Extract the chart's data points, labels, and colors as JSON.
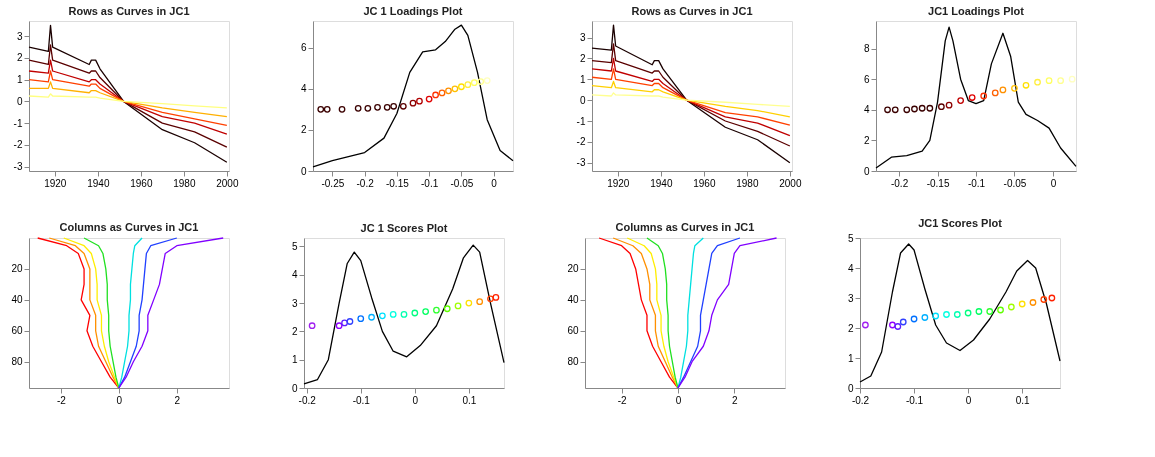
{
  "chart_data": [
    {
      "type": "line",
      "title": "Rows as Curves in JC1",
      "xlim": [
        1908,
        2001
      ],
      "xticks": [
        1920,
        1940,
        1960,
        1980,
        2000
      ],
      "ylim": [
        -3.2,
        3.7
      ],
      "yticks": [
        -3,
        -2,
        -1,
        0,
        1,
        2,
        3
      ],
      "x": [
        1908,
        1917,
        1918,
        1919,
        1936,
        1937,
        1939,
        1941,
        1952,
        1970,
        1985,
        2000
      ],
      "series": [
        {
          "color": "#1a0000",
          "values": [
            2.5,
            2.3,
            3.5,
            2.5,
            1.7,
            1.9,
            1.9,
            1.5,
            0,
            -1.3,
            -1.9,
            -2.8
          ]
        },
        {
          "color": "#5a0000",
          "values": [
            1.9,
            1.7,
            2.6,
            1.9,
            1.3,
            1.4,
            1.4,
            1.1,
            0,
            -1.0,
            -1.4,
            -2.1
          ]
        },
        {
          "color": "#c00000",
          "values": [
            1.4,
            1.3,
            1.9,
            1.4,
            0.9,
            1.0,
            1.0,
            0.8,
            0,
            -0.7,
            -1.0,
            -1.5
          ]
        },
        {
          "color": "#ff4000",
          "values": [
            1.0,
            0.9,
            1.4,
            1.0,
            0.7,
            0.8,
            0.8,
            0.6,
            0,
            -0.5,
            -0.8,
            -1.1
          ]
        },
        {
          "color": "#ffb000",
          "values": [
            0.6,
            0.6,
            0.9,
            0.6,
            0.4,
            0.5,
            0.5,
            0.4,
            0,
            -0.3,
            -0.5,
            -0.7
          ]
        },
        {
          "color": "#ffff80",
          "values": [
            0.25,
            0.2,
            0.35,
            0.25,
            0.2,
            0.2,
            0.2,
            0.15,
            0,
            -0.1,
            -0.2,
            -0.3
          ]
        }
      ]
    },
    {
      "type": "line",
      "title": "JC 1 Loadings Plot",
      "xlim": [
        -0.28,
        0.03
      ],
      "xticks": [
        -0.25,
        -0.2,
        -0.15,
        -0.1,
        -0.05,
        0
      ],
      "ylim": [
        0,
        7.3
      ],
      "yticks": [
        0,
        2,
        4,
        6
      ],
      "series": [
        {
          "color": "#000000",
          "x": [
            -0.28,
            -0.25,
            -0.2,
            -0.17,
            -0.15,
            -0.13,
            -0.11,
            -0.09,
            -0.075,
            -0.06,
            -0.05,
            -0.04,
            -0.025,
            -0.01,
            0.01,
            0.03
          ],
          "values": [
            0.2,
            0.5,
            0.9,
            1.6,
            2.8,
            4.8,
            5.8,
            5.9,
            6.3,
            6.9,
            7.1,
            6.6,
            4.8,
            2.5,
            1.0,
            0.5
          ]
        },
        {
          "type": "scatter",
          "marker": "circle",
          "x": [
            -0.268,
            -0.258,
            -0.235,
            -0.21,
            -0.195,
            -0.18,
            -0.165,
            -0.155,
            -0.14,
            -0.125,
            -0.115,
            -0.1,
            -0.09,
            -0.08,
            -0.07,
            -0.06,
            -0.05,
            -0.04,
            -0.03,
            -0.02,
            -0.01
          ],
          "values": [
            3.0,
            3.0,
            3.0,
            3.05,
            3.05,
            3.1,
            3.1,
            3.15,
            3.15,
            3.3,
            3.4,
            3.5,
            3.7,
            3.8,
            3.9,
            4.0,
            4.1,
            4.2,
            4.3,
            4.35,
            4.4
          ],
          "colors": [
            "#3a0000",
            "#3a0000",
            "#3a0000",
            "#3a0000",
            "#3a0000",
            "#3a0000",
            "#3a0000",
            "#3a0000",
            "#5a0000",
            "#8b0000",
            "#b00000",
            "#e00000",
            "#ff3000",
            "#ff6000",
            "#ff9000",
            "#ffc000",
            "#ffe000",
            "#ffee40",
            "#ffff60",
            "#ffff90",
            "#ffffc0"
          ]
        }
      ]
    },
    {
      "type": "line",
      "title": "Rows as Curves in JC1",
      "xlim": [
        1908,
        2001
      ],
      "xticks": [
        1920,
        1940,
        1960,
        1980,
        2000
      ],
      "ylim": [
        -3.4,
        3.8
      ],
      "yticks": [
        -3,
        -2,
        -1,
        0,
        1,
        2,
        3
      ],
      "x": [
        1908,
        1917,
        1918,
        1919,
        1936,
        1937,
        1939,
        1941,
        1952,
        1970,
        1985,
        2000
      ],
      "series": [
        {
          "color": "#1a0000",
          "values": [
            2.5,
            2.4,
            3.6,
            2.6,
            1.7,
            1.9,
            1.9,
            1.5,
            0,
            -1.3,
            -1.9,
            -3.0
          ]
        },
        {
          "color": "#5a0000",
          "values": [
            1.9,
            1.8,
            2.7,
            1.9,
            1.3,
            1.4,
            1.4,
            1.1,
            0,
            -1.0,
            -1.5,
            -2.2
          ]
        },
        {
          "color": "#c00000",
          "values": [
            1.5,
            1.4,
            2.0,
            1.4,
            0.9,
            1.0,
            1.0,
            0.8,
            0,
            -0.8,
            -1.1,
            -1.7
          ]
        },
        {
          "color": "#ff4000",
          "values": [
            1.1,
            1.0,
            1.5,
            1.0,
            0.7,
            0.8,
            0.8,
            0.6,
            0,
            -0.6,
            -0.8,
            -1.2
          ]
        },
        {
          "color": "#ffd000",
          "values": [
            0.7,
            0.6,
            0.9,
            0.6,
            0.4,
            0.5,
            0.5,
            0.4,
            0,
            -0.3,
            -0.5,
            -0.8
          ]
        },
        {
          "color": "#ffff90",
          "values": [
            0.25,
            0.2,
            0.35,
            0.25,
            0.2,
            0.2,
            0.2,
            0.15,
            0,
            -0.1,
            -0.2,
            -0.3
          ]
        }
      ]
    },
    {
      "type": "line",
      "title": "JC1 Loadings Plot",
      "xlim": [
        -0.23,
        0.03
      ],
      "xticks": [
        -0.2,
        -0.15,
        -0.1,
        -0.05,
        0
      ],
      "ylim": [
        0,
        9.8
      ],
      "yticks": [
        0,
        2,
        4,
        6,
        8
      ],
      "series": [
        {
          "color": "#000000",
          "x": [
            -0.23,
            -0.21,
            -0.19,
            -0.17,
            -0.16,
            -0.15,
            -0.14,
            -0.135,
            -0.13,
            -0.12,
            -0.11,
            -0.1,
            -0.09,
            -0.08,
            -0.065,
            -0.055,
            -0.045,
            -0.035,
            -0.02,
            -0.005,
            0.01,
            0.03
          ],
          "values": [
            0.2,
            0.9,
            1.0,
            1.3,
            2.0,
            4.5,
            8.5,
            9.4,
            8.5,
            6.0,
            4.6,
            4.4,
            4.6,
            7.0,
            9.0,
            7.5,
            4.5,
            3.7,
            3.3,
            2.8,
            1.5,
            0.3
          ]
        },
        {
          "type": "scatter",
          "marker": "circle",
          "x": [
            -0.215,
            -0.205,
            -0.19,
            -0.18,
            -0.17,
            -0.16,
            -0.145,
            -0.135,
            -0.12,
            -0.105,
            -0.09,
            -0.075,
            -0.065,
            -0.05,
            -0.035,
            -0.02,
            -0.005,
            0.01,
            0.025
          ],
          "values": [
            4.0,
            4.0,
            4.0,
            4.05,
            4.1,
            4.1,
            4.2,
            4.3,
            4.6,
            4.8,
            4.9,
            5.1,
            5.3,
            5.4,
            5.6,
            5.8,
            5.9,
            5.9,
            6.0
          ],
          "colors": [
            "#3a0000",
            "#3a0000",
            "#3a0000",
            "#3a0000",
            "#3a0000",
            "#3a0000",
            "#5a0000",
            "#8b0000",
            "#c00000",
            "#e00000",
            "#ff3000",
            "#ff6000",
            "#ff9000",
            "#ffc000",
            "#ffe000",
            "#ffee40",
            "#ffff60",
            "#ffff90",
            "#ffffc0"
          ]
        }
      ]
    },
    {
      "type": "line",
      "title": "Columns as Curves in JC1",
      "xlim": [
        -3.1,
        3.8
      ],
      "xticks": [
        -2,
        0,
        2
      ],
      "ylim": [
        97,
        0
      ],
      "yticks": [
        20,
        40,
        60,
        80
      ],
      "series": [
        {
          "color": "#ff0000",
          "x": [
            -2.8,
            -1.8,
            -1.4,
            -1.2,
            -1.2,
            -1.3,
            -1.0,
            -1.1,
            -0.9,
            -0.6,
            -0.3,
            0
          ],
          "values": [
            0,
            5,
            10,
            20,
            30,
            40,
            50,
            60,
            70,
            80,
            90,
            97
          ]
        },
        {
          "color": "#ff9000",
          "x": [
            -2.4,
            -1.5,
            -1.2,
            -1.0,
            -1.0,
            -1.0,
            -0.8,
            -0.8,
            -0.7,
            -0.45,
            -0.2,
            0
          ],
          "values": [
            0,
            5,
            10,
            20,
            30,
            40,
            50,
            60,
            70,
            80,
            90,
            97
          ]
        },
        {
          "color": "#ffee00",
          "x": [
            -1.9,
            -1.2,
            -0.95,
            -0.8,
            -0.75,
            -0.75,
            -0.6,
            -0.6,
            -0.5,
            -0.35,
            -0.15,
            0
          ],
          "values": [
            0,
            5,
            10,
            20,
            30,
            40,
            50,
            60,
            70,
            80,
            90,
            97
          ]
        },
        {
          "color": "#20e020",
          "x": [
            -1.2,
            -0.7,
            -0.55,
            -0.45,
            -0.4,
            -0.4,
            -0.35,
            -0.35,
            -0.3,
            -0.2,
            -0.1,
            0
          ],
          "values": [
            0,
            5,
            10,
            20,
            30,
            40,
            50,
            60,
            70,
            80,
            90,
            97
          ]
        },
        {
          "color": "#00e0e0",
          "x": [
            0.8,
            0.55,
            0.5,
            0.45,
            0.4,
            0.4,
            0.35,
            0.35,
            0.3,
            0.2,
            0.1,
            0
          ],
          "values": [
            0,
            5,
            10,
            20,
            30,
            40,
            50,
            60,
            70,
            80,
            90,
            97
          ]
        },
        {
          "color": "#2040ff",
          "x": [
            2.0,
            1.1,
            0.95,
            0.9,
            0.85,
            0.8,
            0.7,
            0.7,
            0.6,
            0.4,
            0.2,
            0
          ],
          "values": [
            0,
            5,
            10,
            20,
            30,
            40,
            50,
            60,
            70,
            80,
            90,
            97
          ]
        },
        {
          "color": "#8000ff",
          "x": [
            3.6,
            2.0,
            1.6,
            1.5,
            1.4,
            1.2,
            1.0,
            1.0,
            0.8,
            0.5,
            0.25,
            0
          ],
          "values": [
            0,
            5,
            10,
            20,
            30,
            40,
            50,
            60,
            70,
            80,
            90,
            97
          ]
        }
      ]
    },
    {
      "type": "line",
      "title": "JC 1 Scores Plot",
      "xlim": [
        -0.205,
        0.165
      ],
      "xticks": [
        -0.2,
        -0.1,
        0,
        0.1
      ],
      "ylim": [
        0,
        5.3
      ],
      "yticks": [
        0,
        1,
        2,
        3,
        4,
        5
      ],
      "series": [
        {
          "color": "#000000",
          "x": [
            -0.205,
            -0.18,
            -0.16,
            -0.14,
            -0.125,
            -0.112,
            -0.1,
            -0.08,
            -0.06,
            -0.04,
            -0.015,
            0.01,
            0.04,
            0.07,
            0.09,
            0.108,
            0.12,
            0.14,
            0.165
          ],
          "values": [
            0.15,
            0.3,
            1.0,
            3.0,
            4.4,
            4.8,
            4.5,
            3.2,
            2.0,
            1.3,
            1.1,
            1.5,
            2.2,
            3.5,
            4.6,
            5.05,
            4.8,
            3.0,
            0.9
          ]
        },
        {
          "type": "scatter",
          "marker": "circle",
          "x": [
            -0.19,
            -0.14,
            -0.13,
            -0.12,
            -0.1,
            -0.08,
            -0.06,
            -0.04,
            -0.02,
            0.0,
            0.02,
            0.04,
            0.06,
            0.08,
            0.1,
            0.12,
            0.14,
            0.15
          ],
          "values": [
            2.2,
            2.2,
            2.3,
            2.35,
            2.45,
            2.5,
            2.55,
            2.6,
            2.6,
            2.65,
            2.7,
            2.75,
            2.8,
            2.9,
            3.0,
            3.05,
            3.15,
            3.2
          ],
          "colors": [
            "#a020f0",
            "#9000ff",
            "#6020ff",
            "#3040ff",
            "#0070ff",
            "#00b0ff",
            "#00e0ff",
            "#00ffe0",
            "#00ffb0",
            "#00ff80",
            "#00ff60",
            "#30ff30",
            "#60ff00",
            "#a0ff00",
            "#ffe000",
            "#ff9000",
            "#ff4000",
            "#ff2000"
          ]
        }
      ]
    },
    {
      "type": "line",
      "title": "Columns as Curves in JC1",
      "xlim": [
        -3.3,
        3.8
      ],
      "xticks": [
        -2,
        0,
        2
      ],
      "ylim": [
        97,
        0
      ],
      "yticks": [
        20,
        40,
        60,
        80
      ],
      "series": [
        {
          "color": "#ff0000",
          "x": [
            -2.8,
            -2.0,
            -1.7,
            -1.5,
            -1.4,
            -1.3,
            -1.1,
            -1.1,
            -0.9,
            -0.6,
            -0.3,
            0
          ],
          "values": [
            0,
            5,
            10,
            20,
            30,
            40,
            50,
            60,
            70,
            80,
            90,
            97
          ]
        },
        {
          "color": "#ff9000",
          "x": [
            -2.3,
            -1.6,
            -1.3,
            -1.1,
            -1.0,
            -1.0,
            -0.8,
            -0.8,
            -0.7,
            -0.45,
            -0.2,
            0
          ],
          "values": [
            0,
            5,
            10,
            20,
            30,
            40,
            50,
            60,
            70,
            80,
            90,
            97
          ]
        },
        {
          "color": "#ffee00",
          "x": [
            -1.8,
            -1.2,
            -0.95,
            -0.8,
            -0.75,
            -0.75,
            -0.6,
            -0.6,
            -0.5,
            -0.35,
            -0.15,
            0
          ],
          "values": [
            0,
            5,
            10,
            20,
            30,
            40,
            50,
            60,
            70,
            80,
            90,
            97
          ]
        },
        {
          "color": "#20e020",
          "x": [
            -1.1,
            -0.7,
            -0.55,
            -0.45,
            -0.4,
            -0.4,
            -0.35,
            -0.35,
            -0.3,
            -0.2,
            -0.1,
            0
          ],
          "values": [
            0,
            5,
            10,
            20,
            30,
            40,
            50,
            60,
            70,
            80,
            90,
            97
          ]
        },
        {
          "color": "#00e0e0",
          "x": [
            0.9,
            0.6,
            0.55,
            0.5,
            0.45,
            0.4,
            0.35,
            0.35,
            0.3,
            0.2,
            0.1,
            0
          ],
          "values": [
            0,
            5,
            10,
            20,
            30,
            40,
            50,
            60,
            70,
            80,
            90,
            97
          ]
        },
        {
          "color": "#2040ff",
          "x": [
            2.2,
            1.4,
            1.2,
            1.1,
            1.0,
            0.9,
            0.8,
            0.8,
            0.7,
            0.45,
            0.2,
            0
          ],
          "values": [
            0,
            5,
            10,
            20,
            30,
            40,
            50,
            60,
            70,
            80,
            90,
            97
          ]
        },
        {
          "color": "#8000ff",
          "x": [
            3.5,
            2.2,
            2.0,
            1.9,
            1.8,
            1.4,
            1.2,
            1.1,
            0.9,
            0.5,
            0.25,
            0
          ],
          "values": [
            0,
            5,
            10,
            20,
            30,
            40,
            50,
            60,
            70,
            80,
            90,
            97
          ]
        }
      ]
    },
    {
      "type": "line",
      "title": "JC1 Scores Plot",
      "xlim": [
        -0.2,
        0.17
      ],
      "xticks": [
        -0.2,
        -0.1,
        0,
        0.1
      ],
      "ylim": [
        0,
        5
      ],
      "yticks": [
        0,
        1,
        2,
        3,
        4,
        5
      ],
      "series": [
        {
          "color": "#000000",
          "x": [
            -0.2,
            -0.18,
            -0.16,
            -0.14,
            -0.125,
            -0.11,
            -0.1,
            -0.08,
            -0.06,
            -0.04,
            -0.015,
            0.01,
            0.04,
            0.07,
            0.09,
            0.11,
            0.125,
            0.145,
            0.17
          ],
          "values": [
            0.2,
            0.4,
            1.2,
            3.2,
            4.5,
            4.8,
            4.6,
            3.3,
            2.1,
            1.5,
            1.25,
            1.6,
            2.3,
            3.2,
            3.9,
            4.25,
            4.0,
            2.8,
            0.9
          ]
        },
        {
          "type": "scatter",
          "marker": "circle",
          "x": [
            -0.19,
            -0.14,
            -0.13,
            -0.12,
            -0.1,
            -0.08,
            -0.06,
            -0.04,
            -0.02,
            0.0,
            0.02,
            0.04,
            0.06,
            0.08,
            0.1,
            0.12,
            0.14,
            0.155
          ],
          "values": [
            2.1,
            2.1,
            2.05,
            2.2,
            2.3,
            2.35,
            2.4,
            2.45,
            2.45,
            2.5,
            2.55,
            2.55,
            2.6,
            2.7,
            2.8,
            2.85,
            2.95,
            3.0
          ],
          "colors": [
            "#a020f0",
            "#9000ff",
            "#6020ff",
            "#3040ff",
            "#0070ff",
            "#00b0ff",
            "#00e0ff",
            "#00ffe0",
            "#00ffb0",
            "#00ff80",
            "#00ff60",
            "#30ff30",
            "#60ff00",
            "#a0ff00",
            "#ffe000",
            "#ff9000",
            "#ff4000",
            "#ff2000"
          ]
        }
      ]
    }
  ]
}
